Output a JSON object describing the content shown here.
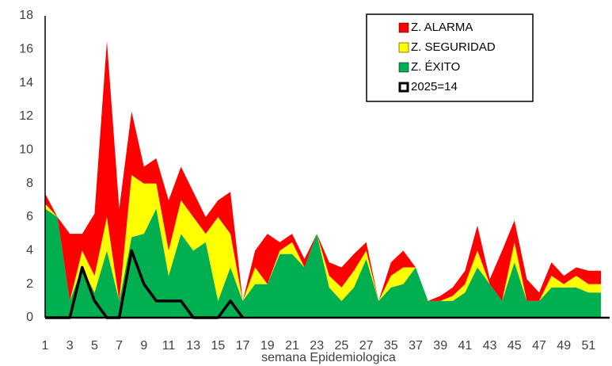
{
  "chart_data": {
    "type": "area",
    "stacked": true,
    "xlabel": "semana Epidemiologica",
    "categories": [
      "1",
      null,
      "3",
      null,
      "5",
      null,
      "7",
      null,
      "9",
      null,
      "11",
      null,
      "13",
      null,
      "15",
      null,
      "17",
      null,
      "19",
      null,
      "21",
      null,
      "23",
      null,
      "25",
      null,
      "27",
      null,
      "35",
      null,
      "37",
      null,
      "39",
      null,
      "41",
      null,
      "43",
      null,
      "45",
      null,
      "47",
      null,
      "49",
      null,
      "51",
      null
    ],
    "series": [
      {
        "name": "Z. ÉXITO",
        "color": "#00b050",
        "values": [
          6.5,
          6.0,
          1.0,
          3.0,
          1.5,
          4.0,
          1.0,
          4.8,
          5.0,
          6.5,
          2.5,
          5.0,
          4.0,
          4.5,
          1.0,
          3.0,
          1.0,
          2.0,
          2.0,
          3.8,
          3.8,
          3.0,
          5.0,
          1.8,
          1.0,
          1.8,
          3.5,
          1.0,
          1.8,
          2.0,
          3.0,
          1.0,
          1.0,
          1.0,
          1.5,
          3.0,
          2.0,
          1.0,
          3.3,
          1.0,
          1.0,
          1.8,
          1.8,
          1.8,
          1.5,
          1.5
        ]
      },
      {
        "name": "Z. SEGURIDAD",
        "color": "#ffff00",
        "values": [
          0.3,
          0,
          0,
          1.0,
          1.0,
          2.0,
          0,
          3.7,
          3.0,
          1.5,
          1.5,
          2.0,
          2.0,
          0.5,
          5.0,
          2.0,
          0,
          1.0,
          0,
          0.2,
          0.7,
          0,
          0,
          0.7,
          0.8,
          1.0,
          0.5,
          0,
          0.7,
          1.0,
          0,
          0,
          0,
          0.3,
          0.5,
          1.0,
          0,
          0,
          1.2,
          0,
          0,
          0.7,
          0.2,
          0.7,
          0.5,
          0.5
        ]
      },
      {
        "name": "Z. ALARMA",
        "color": "#ff0000",
        "values": [
          0.6,
          0,
          4.0,
          1.0,
          3.7,
          10.5,
          5.5,
          3.8,
          1.0,
          1.5,
          3.0,
          2.0,
          1.5,
          1.0,
          1.0,
          2.5,
          0,
          1.0,
          3.0,
          0.5,
          0.5,
          0.5,
          0,
          0.8,
          1.2,
          1.0,
          0.5,
          0,
          0.8,
          1.0,
          0,
          0,
          0.3,
          0.5,
          0.8,
          1.5,
          0.3,
          3.0,
          1.3,
          1.3,
          0.5,
          0.8,
          0.5,
          0.5,
          0.8,
          0.8
        ]
      },
      {
        "name": "2025=14",
        "color": "#000000",
        "type": "line",
        "values": [
          0,
          0,
          0,
          3,
          1,
          0,
          0,
          4,
          2,
          1,
          1,
          1,
          0,
          0,
          0,
          1,
          0,
          null,
          null,
          null,
          null,
          null,
          null,
          null,
          null,
          null,
          null,
          null,
          null,
          null,
          null,
          null,
          null,
          null,
          null,
          null,
          null,
          null,
          null,
          null,
          null,
          null,
          null,
          null,
          null,
          null
        ]
      }
    ],
    "ylim": [
      0,
      18
    ],
    "yticks": [
      0,
      2,
      4,
      6,
      8,
      10,
      12,
      14,
      16,
      18
    ],
    "grid": false,
    "legend": "upper right"
  }
}
